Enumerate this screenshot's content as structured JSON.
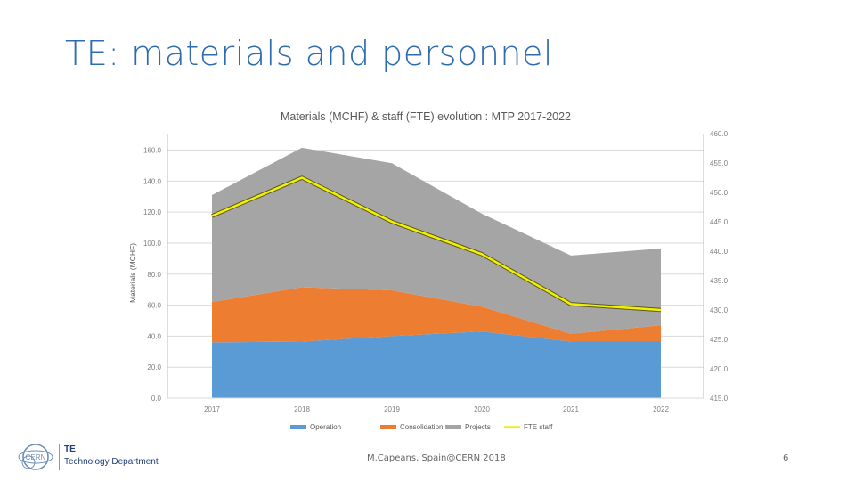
{
  "slide": {
    "title": "TE: materials and personnel",
    "footer_author": "M.Capeans, Spain@CERN 2018",
    "page_number": "6",
    "logo": {
      "org": "CERN",
      "abbr": "TE",
      "department": "Technology Department"
    }
  },
  "chart_data": {
    "type": "area",
    "stacked": true,
    "title": "Materials (MCHF) & staff (FTE) evolution :  MTP 2017-2022",
    "ylabel": "Materials (MCHF)",
    "ylim": [
      0,
      160
    ],
    "yticks": [
      "0.0",
      "20.0",
      "40.0",
      "60.0",
      "80.0",
      "100.0",
      "120.0",
      "140.0",
      "160.0"
    ],
    "y2lim": [
      415,
      460
    ],
    "y2ticks": [
      "415.0",
      "420.0",
      "425.0",
      "430.0",
      "435.0",
      "440.0",
      "445.0",
      "450.0",
      "455.0",
      "460.0"
    ],
    "categories": [
      "2017",
      "2018",
      "2019",
      "2020",
      "2021",
      "2022"
    ],
    "series": [
      {
        "name": "Operation",
        "color": "#5b9bd5",
        "values": [
          36,
          36.5,
          40,
          43,
          36.5,
          36.5
        ]
      },
      {
        "name": "Consolidation",
        "color": "#ed7d31",
        "values": [
          26,
          35,
          29.5,
          16,
          5,
          10.5
        ]
      },
      {
        "name": "Projects",
        "color": "#a5a5a5",
        "values": [
          69,
          90,
          82,
          60,
          50.5,
          49.5
        ]
      }
    ],
    "line_series": {
      "name": "FTE staff",
      "axis": "right",
      "color": "#f2f200",
      "values": [
        446,
        452.5,
        445,
        439.5,
        431,
        430
      ]
    },
    "grid": true,
    "legend_position": "bottom"
  }
}
